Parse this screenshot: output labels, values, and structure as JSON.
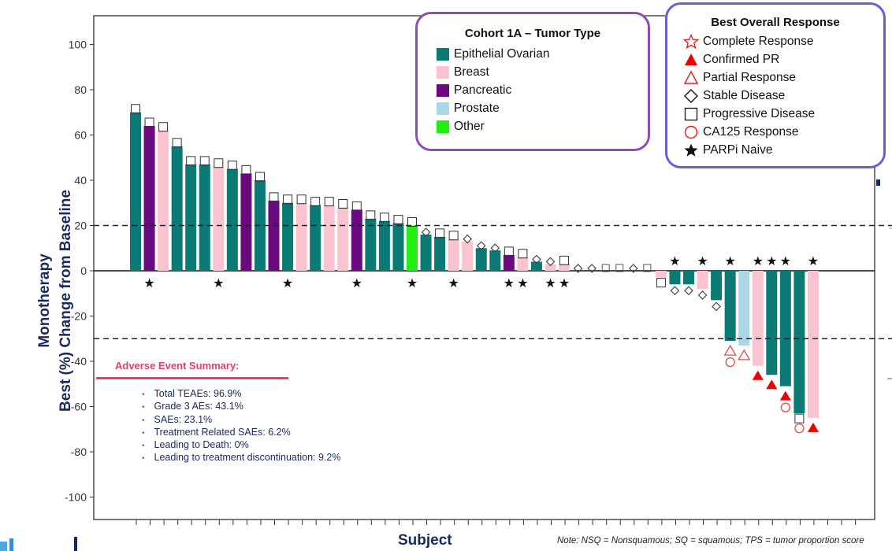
{
  "chart_data": {
    "type": "bar",
    "ylabel_line1": "Monotherapy",
    "ylabel_line2": "Best (%) Change from Baseline",
    "xlabel": "Subject",
    "ylim": [
      -110,
      108
    ],
    "yticks": [
      100,
      80,
      60,
      40,
      20,
      0,
      -20,
      -40,
      -60,
      -80,
      -100
    ],
    "reference_lines": [
      20,
      -30
    ],
    "colors": {
      "Epithelial Ovarian": "#0b7a75",
      "Breast": "#f9c4cf",
      "Pancreatic": "#6a0a7e",
      "Prostate": "#a9d8e6",
      "Other": "#22ee11"
    },
    "bars": [
      {
        "v": 70,
        "t": "Epithelial Ovarian",
        "r": "progressive",
        "naive": false
      },
      {
        "v": 64,
        "t": "Pancreatic",
        "r": "progressive",
        "naive": true
      },
      {
        "v": 62,
        "t": "Breast",
        "r": "progressive",
        "naive": false
      },
      {
        "v": 55,
        "t": "Epithelial Ovarian",
        "r": "progressive",
        "naive": false
      },
      {
        "v": 47,
        "t": "Epithelial Ovarian",
        "r": "progressive",
        "naive": false
      },
      {
        "v": 47,
        "t": "Epithelial Ovarian",
        "r": "progressive",
        "naive": false
      },
      {
        "v": 46,
        "t": "Breast",
        "r": "progressive",
        "naive": true
      },
      {
        "v": 45,
        "t": "Epithelial Ovarian",
        "r": "progressive",
        "naive": false
      },
      {
        "v": 43,
        "t": "Pancreatic",
        "r": "progressive",
        "naive": false
      },
      {
        "v": 40,
        "t": "Epithelial Ovarian",
        "r": "progressive",
        "naive": false
      },
      {
        "v": 31,
        "t": "Pancreatic",
        "r": "progressive",
        "naive": false
      },
      {
        "v": 30,
        "t": "Epithelial Ovarian",
        "r": "progressive",
        "naive": true
      },
      {
        "v": 30,
        "t": "Breast",
        "r": "progressive",
        "naive": false
      },
      {
        "v": 29,
        "t": "Epithelial Ovarian",
        "r": "progressive",
        "naive": false
      },
      {
        "v": 29,
        "t": "Breast",
        "r": "progressive",
        "naive": false
      },
      {
        "v": 28,
        "t": "Breast",
        "r": "progressive",
        "naive": false
      },
      {
        "v": 27,
        "t": "Pancreatic",
        "r": "progressive",
        "naive": true
      },
      {
        "v": 23,
        "t": "Epithelial Ovarian",
        "r": "progressive",
        "naive": false
      },
      {
        "v": 22,
        "t": "Epithelial Ovarian",
        "r": "progressive",
        "naive": false
      },
      {
        "v": 21,
        "t": "Epithelial Ovarian",
        "r": "progressive",
        "naive": false
      },
      {
        "v": 20,
        "t": "Other",
        "r": "progressive",
        "naive": true
      },
      {
        "v": 16,
        "t": "Epithelial Ovarian",
        "r": "stable",
        "naive": false
      },
      {
        "v": 15,
        "t": "Epithelial Ovarian",
        "r": "progressive",
        "naive": false
      },
      {
        "v": 14,
        "t": "Breast",
        "r": "progressive",
        "naive": true
      },
      {
        "v": 13,
        "t": "Breast",
        "r": "stable",
        "naive": false
      },
      {
        "v": 10,
        "t": "Epithelial Ovarian",
        "r": "stable",
        "naive": false
      },
      {
        "v": 9,
        "t": "Epithelial Ovarian",
        "r": "stable",
        "naive": false
      },
      {
        "v": 7,
        "t": "Pancreatic",
        "r": "progressive",
        "naive": true
      },
      {
        "v": 6,
        "t": "Breast",
        "r": "progressive",
        "naive": true
      },
      {
        "v": 4,
        "t": "Epithelial Ovarian",
        "r": "stable",
        "naive": false
      },
      {
        "v": 3,
        "t": "Breast",
        "r": "stable",
        "naive": true
      },
      {
        "v": 3,
        "t": "Breast",
        "r": "progressive",
        "naive": true
      },
      {
        "v": 0,
        "t": "Breast",
        "r": "stable",
        "naive": false
      },
      {
        "v": 0,
        "t": "Breast",
        "r": "stable",
        "naive": false
      },
      {
        "v": 0,
        "t": "Breast",
        "r": "progressive",
        "naive": false
      },
      {
        "v": 0,
        "t": "Breast",
        "r": "progressive",
        "naive": false
      },
      {
        "v": 0,
        "t": "Breast",
        "r": "stable",
        "naive": false
      },
      {
        "v": 0,
        "t": "Breast",
        "r": "progressive",
        "naive": false
      },
      {
        "v": -3,
        "t": "Breast",
        "r": "progressive",
        "naive": false
      },
      {
        "v": -6,
        "t": "Epithelial Ovarian",
        "r": "stable",
        "naive": true
      },
      {
        "v": -6,
        "t": "Epithelial Ovarian",
        "r": "stable",
        "naive": false
      },
      {
        "v": -8,
        "t": "Breast",
        "r": "stable",
        "naive": true
      },
      {
        "v": -13,
        "t": "Epithelial Ovarian",
        "r": "stable",
        "naive": false
      },
      {
        "v": -31,
        "t": "Epithelial Ovarian",
        "r": "partial",
        "ca125": true,
        "naive": true
      },
      {
        "v": -33,
        "t": "Prostate",
        "r": "partial",
        "naive": false
      },
      {
        "v": -42,
        "t": "Breast",
        "r": "confirmed",
        "naive": true
      },
      {
        "v": -46,
        "t": "Epithelial Ovarian",
        "r": "confirmed",
        "naive": true
      },
      {
        "v": -51,
        "t": "Epithelial Ovarian",
        "r": "confirmed",
        "ca125": true,
        "naive": true
      },
      {
        "v": -63,
        "t": "Epithelial Ovarian",
        "r": "progressive",
        "ca125": true,
        "naive": false
      },
      {
        "v": -65,
        "t": "Breast",
        "r": "confirmed",
        "naive": true
      }
    ]
  },
  "legend_tumor": {
    "title": "Cohort 1A – Tumor Type",
    "items": [
      {
        "label": "Epithelial Ovarian",
        "color": "#0b7a75"
      },
      {
        "label": "Breast",
        "color": "#f9c4cf"
      },
      {
        "label": "Pancreatic",
        "color": "#6a0a7e"
      },
      {
        "label": "Prostate",
        "color": "#a9d8e6"
      },
      {
        "label": "Other",
        "color": "#22ee11"
      }
    ]
  },
  "legend_response": {
    "title": "Best Overall Response",
    "items": [
      {
        "label": "Complete Response",
        "icon": "star-outline-icon"
      },
      {
        "label": "Confirmed PR",
        "icon": "triangle-filled-icon"
      },
      {
        "label": "Partial Response",
        "icon": "triangle-outline-icon"
      },
      {
        "label": "Stable Disease",
        "icon": "diamond-icon"
      },
      {
        "label": "Progressive Disease",
        "icon": "square-icon"
      },
      {
        "label": "CA125 Response",
        "icon": "circle-icon"
      },
      {
        "label": "PARPi Naive",
        "icon": "star-filled-icon"
      }
    ]
  },
  "adverse_events": {
    "title": "Adverse Event Summary:",
    "items": [
      "Total TEAEs: 96.9%",
      "Grade 3 AEs: 43.1%",
      "SAEs: 23.1%",
      "Treatment Related SAEs: 6.2%",
      "Leading to Death: 0%",
      "Leading to treatment discontinuation: 9.2%"
    ]
  },
  "note": "Note: NSQ = Nonsquamous; SQ = squamous; TPS = tumor proportion score"
}
